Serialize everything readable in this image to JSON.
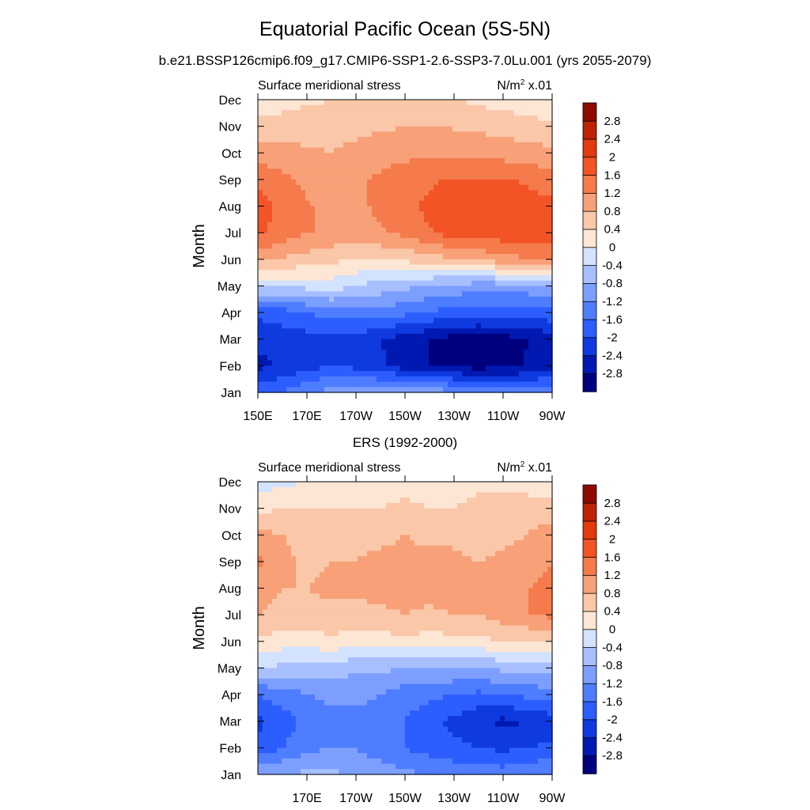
{
  "figure": {
    "title": "Equatorial Pacific Ocean (5S-5N)",
    "subtitle": "b.e21.BSSP126cmip6.f09_g17.CMIP6-SSP1-2.6-SSP3-7.0Lu.001 (yrs 2055-2079)"
  },
  "palette": {
    "levels": [
      -3.2,
      -2.8,
      -2.4,
      -2.0,
      -1.6,
      -1.2,
      -0.8,
      -0.4,
      0,
      0.4,
      0.8,
      1.2,
      1.6,
      2.0,
      2.4,
      2.8,
      3.2
    ],
    "colors": [
      "#00007f",
      "#0019b0",
      "#0f3ae0",
      "#2c5eff",
      "#4f7dff",
      "#7c9fff",
      "#a8bfff",
      "#d2e2ff",
      "#fde6d4",
      "#fbc7a9",
      "#f8a077",
      "#f57a4c",
      "#f35426",
      "#e13a0c",
      "#bc2304",
      "#8f0a00"
    ],
    "labels": [
      "-2.8",
      "-2.4",
      "-2",
      "-1.6",
      "-1.2",
      "-0.8",
      "-0.4",
      "0",
      "0.4",
      "0.8",
      "1.2",
      "1.6",
      "2",
      "2.4",
      "2.8"
    ]
  },
  "chart_data": [
    {
      "type": "heatmap",
      "name": "model",
      "panel_left": "Surface meridional stress",
      "panel_right_base": "N/m",
      "panel_right_exp": "2",
      "panel_right_tail": " x.01",
      "ylabel": "Month",
      "xlabel": "",
      "xlim": [
        150,
        270
      ],
      "ylim": [
        1,
        12
      ],
      "y_ticks": [
        "Jan",
        "Feb",
        "Mar",
        "Apr",
        "May",
        "Jun",
        "Jul",
        "Aug",
        "Sep",
        "Oct",
        "Nov",
        "Dec"
      ],
      "x_ticks": [
        150,
        170,
        190,
        210,
        230,
        250,
        270
      ],
      "x_tick_labels": [
        "150E",
        "170E",
        "170W",
        "150W",
        "130W",
        "110W",
        "90W"
      ],
      "x": [
        150,
        165,
        180,
        195,
        210,
        225,
        240,
        255,
        270
      ],
      "months": [
        1,
        2,
        3,
        4,
        5,
        6,
        7,
        8,
        9,
        10,
        11,
        12
      ],
      "values": [
        [
          -1.8,
          -1.4,
          -1.0,
          -0.9,
          -0.9,
          -1.0,
          -1.2,
          -1.3,
          -1.4
        ],
        [
          -2.5,
          -2.3,
          -2.0,
          -2.2,
          -2.6,
          -2.9,
          -3.0,
          -2.9,
          -2.5
        ],
        [
          -2.3,
          -2.2,
          -2.1,
          -2.3,
          -2.6,
          -2.9,
          -3.0,
          -2.9,
          -2.6
        ],
        [
          -1.9,
          -1.7,
          -1.4,
          -1.3,
          -1.5,
          -1.7,
          -1.8,
          -1.8,
          -1.7
        ],
        [
          -0.3,
          -0.3,
          -0.2,
          -0.5,
          -0.7,
          -0.9,
          -1.0,
          -1.0,
          -0.9
        ],
        [
          0.9,
          0.7,
          0.5,
          0.4,
          0.5,
          0.7,
          0.9,
          1.1,
          1.3
        ],
        [
          1.7,
          1.3,
          1.1,
          1.1,
          1.3,
          1.7,
          1.8,
          1.9,
          1.8
        ],
        [
          1.8,
          1.3,
          1.1,
          1.2,
          1.5,
          1.8,
          1.8,
          1.8,
          1.7
        ],
        [
          1.5,
          1.2,
          1.0,
          1.2,
          1.4,
          1.6,
          1.6,
          1.6,
          1.4
        ],
        [
          1.0,
          0.9,
          0.8,
          1.0,
          1.1,
          1.1,
          1.1,
          1.0,
          0.9
        ],
        [
          0.6,
          0.6,
          0.6,
          0.7,
          0.8,
          0.8,
          0.7,
          0.6,
          0.5
        ],
        [
          0.0,
          0.3,
          0.4,
          0.5,
          0.5,
          0.5,
          0.3,
          0.2,
          0.0
        ]
      ]
    },
    {
      "type": "heatmap",
      "name": "observations",
      "title": "ERS (1992-2000)",
      "panel_left": "Surface meridional stress",
      "panel_right_base": "N/m",
      "panel_right_exp": "2",
      "panel_right_tail": " x.01",
      "ylabel": "Month",
      "xlabel": "",
      "xlim": [
        150,
        270
      ],
      "ylim": [
        1,
        12
      ],
      "y_ticks": [
        "Jan",
        "Feb",
        "Mar",
        "Apr",
        "May",
        "Jun",
        "Jul",
        "Aug",
        "Sep",
        "Oct",
        "Nov",
        "Dec"
      ],
      "x_ticks": [
        170,
        190,
        210,
        230,
        250,
        270
      ],
      "x_tick_labels": [
        "170E",
        "170W",
        "150W",
        "130W",
        "110W",
        "90W"
      ],
      "x": [
        150,
        160,
        170,
        180,
        190,
        200,
        210,
        220,
        230,
        240,
        250,
        260,
        270
      ],
      "months": [
        1,
        2,
        3,
        4,
        5,
        6,
        7,
        8,
        9,
        10,
        11,
        12
      ],
      "values": [
        [
          -0.9,
          -0.8,
          -0.7,
          -0.7,
          -0.9,
          -1.0,
          -1.1,
          -1.2,
          -1.3,
          -1.3,
          -1.4,
          -1.3,
          -1.2
        ],
        [
          -1.9,
          -1.6,
          -1.3,
          -1.2,
          -1.2,
          -1.4,
          -1.6,
          -1.8,
          -1.9,
          -2.0,
          -2.1,
          -2.0,
          -1.9
        ],
        [
          -2.1,
          -1.8,
          -1.5,
          -1.3,
          -1.3,
          -1.4,
          -1.6,
          -1.9,
          -2.1,
          -2.3,
          -2.5,
          -2.4,
          -2.2
        ],
        [
          -1.6,
          -1.4,
          -1.2,
          -1.1,
          -1.1,
          -1.2,
          -1.4,
          -1.5,
          -1.6,
          -1.7,
          -1.6,
          -1.5,
          -1.4
        ],
        [
          -0.4,
          -0.5,
          -0.6,
          -0.6,
          -0.7,
          -0.7,
          -0.8,
          -0.8,
          -0.8,
          -0.8,
          -0.7,
          -0.6,
          -0.6
        ],
        [
          0.3,
          0.2,
          0.2,
          0.3,
          0.2,
          0.2,
          0.3,
          0.2,
          0.3,
          0.3,
          0.4,
          0.4,
          0.5
        ],
        [
          0.8,
          0.7,
          0.6,
          0.7,
          0.6,
          0.7,
          0.8,
          0.7,
          0.8,
          0.8,
          1.0,
          1.2,
          1.3
        ],
        [
          1.0,
          0.8,
          0.8,
          0.9,
          0.9,
          1.0,
          1.0,
          1.0,
          1.0,
          0.9,
          1.0,
          1.2,
          1.3
        ],
        [
          1.3,
          0.9,
          0.7,
          0.8,
          0.8,
          0.9,
          0.9,
          0.9,
          0.9,
          0.8,
          0.9,
          1.0,
          1.2
        ],
        [
          0.9,
          0.8,
          0.7,
          0.7,
          0.7,
          0.7,
          0.8,
          0.7,
          0.7,
          0.6,
          0.7,
          0.8,
          1.0
        ],
        [
          0.3,
          0.4,
          0.4,
          0.4,
          0.4,
          0.4,
          0.5,
          0.4,
          0.4,
          0.5,
          0.5,
          0.6,
          0.6
        ],
        [
          -0.2,
          -0.1,
          0.0,
          0.1,
          0.1,
          0.2,
          0.2,
          0.2,
          0.2,
          0.3,
          0.3,
          0.2,
          0.1
        ]
      ]
    }
  ]
}
